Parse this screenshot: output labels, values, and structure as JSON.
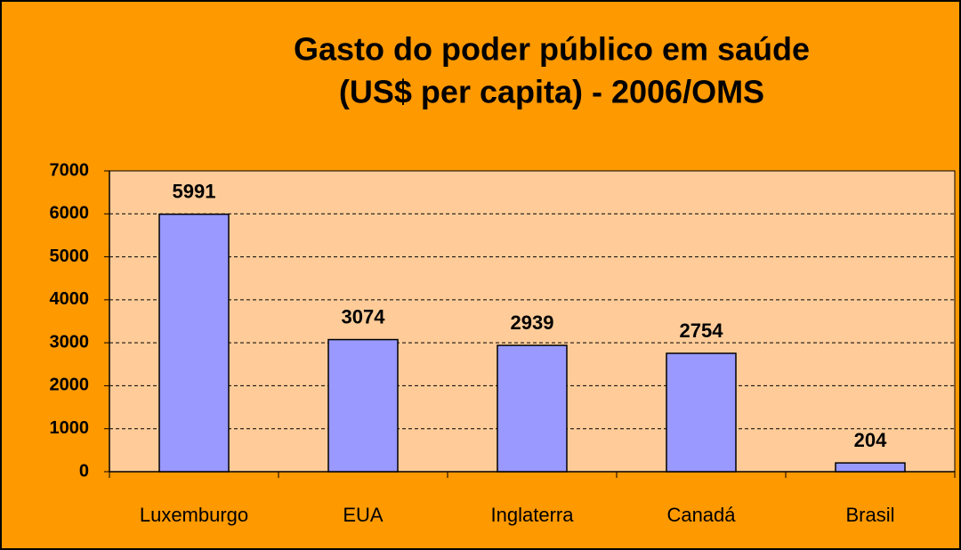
{
  "chart_data": {
    "type": "bar",
    "title": [
      "Gasto do poder público em saúde",
      "(US$ per capita) - 2006/OMS"
    ],
    "categories": [
      "Luxemburgo",
      "EUA",
      "Inglaterra",
      "Canadá",
      "Brasil"
    ],
    "values": [
      5991,
      3074,
      2939,
      2754,
      204
    ],
    "color": "#9999ff",
    "ylim": [
      0,
      7000
    ],
    "yticks": [
      0,
      1000,
      2000,
      3000,
      4000,
      5000,
      6000,
      7000
    ],
    "grid": true
  }
}
